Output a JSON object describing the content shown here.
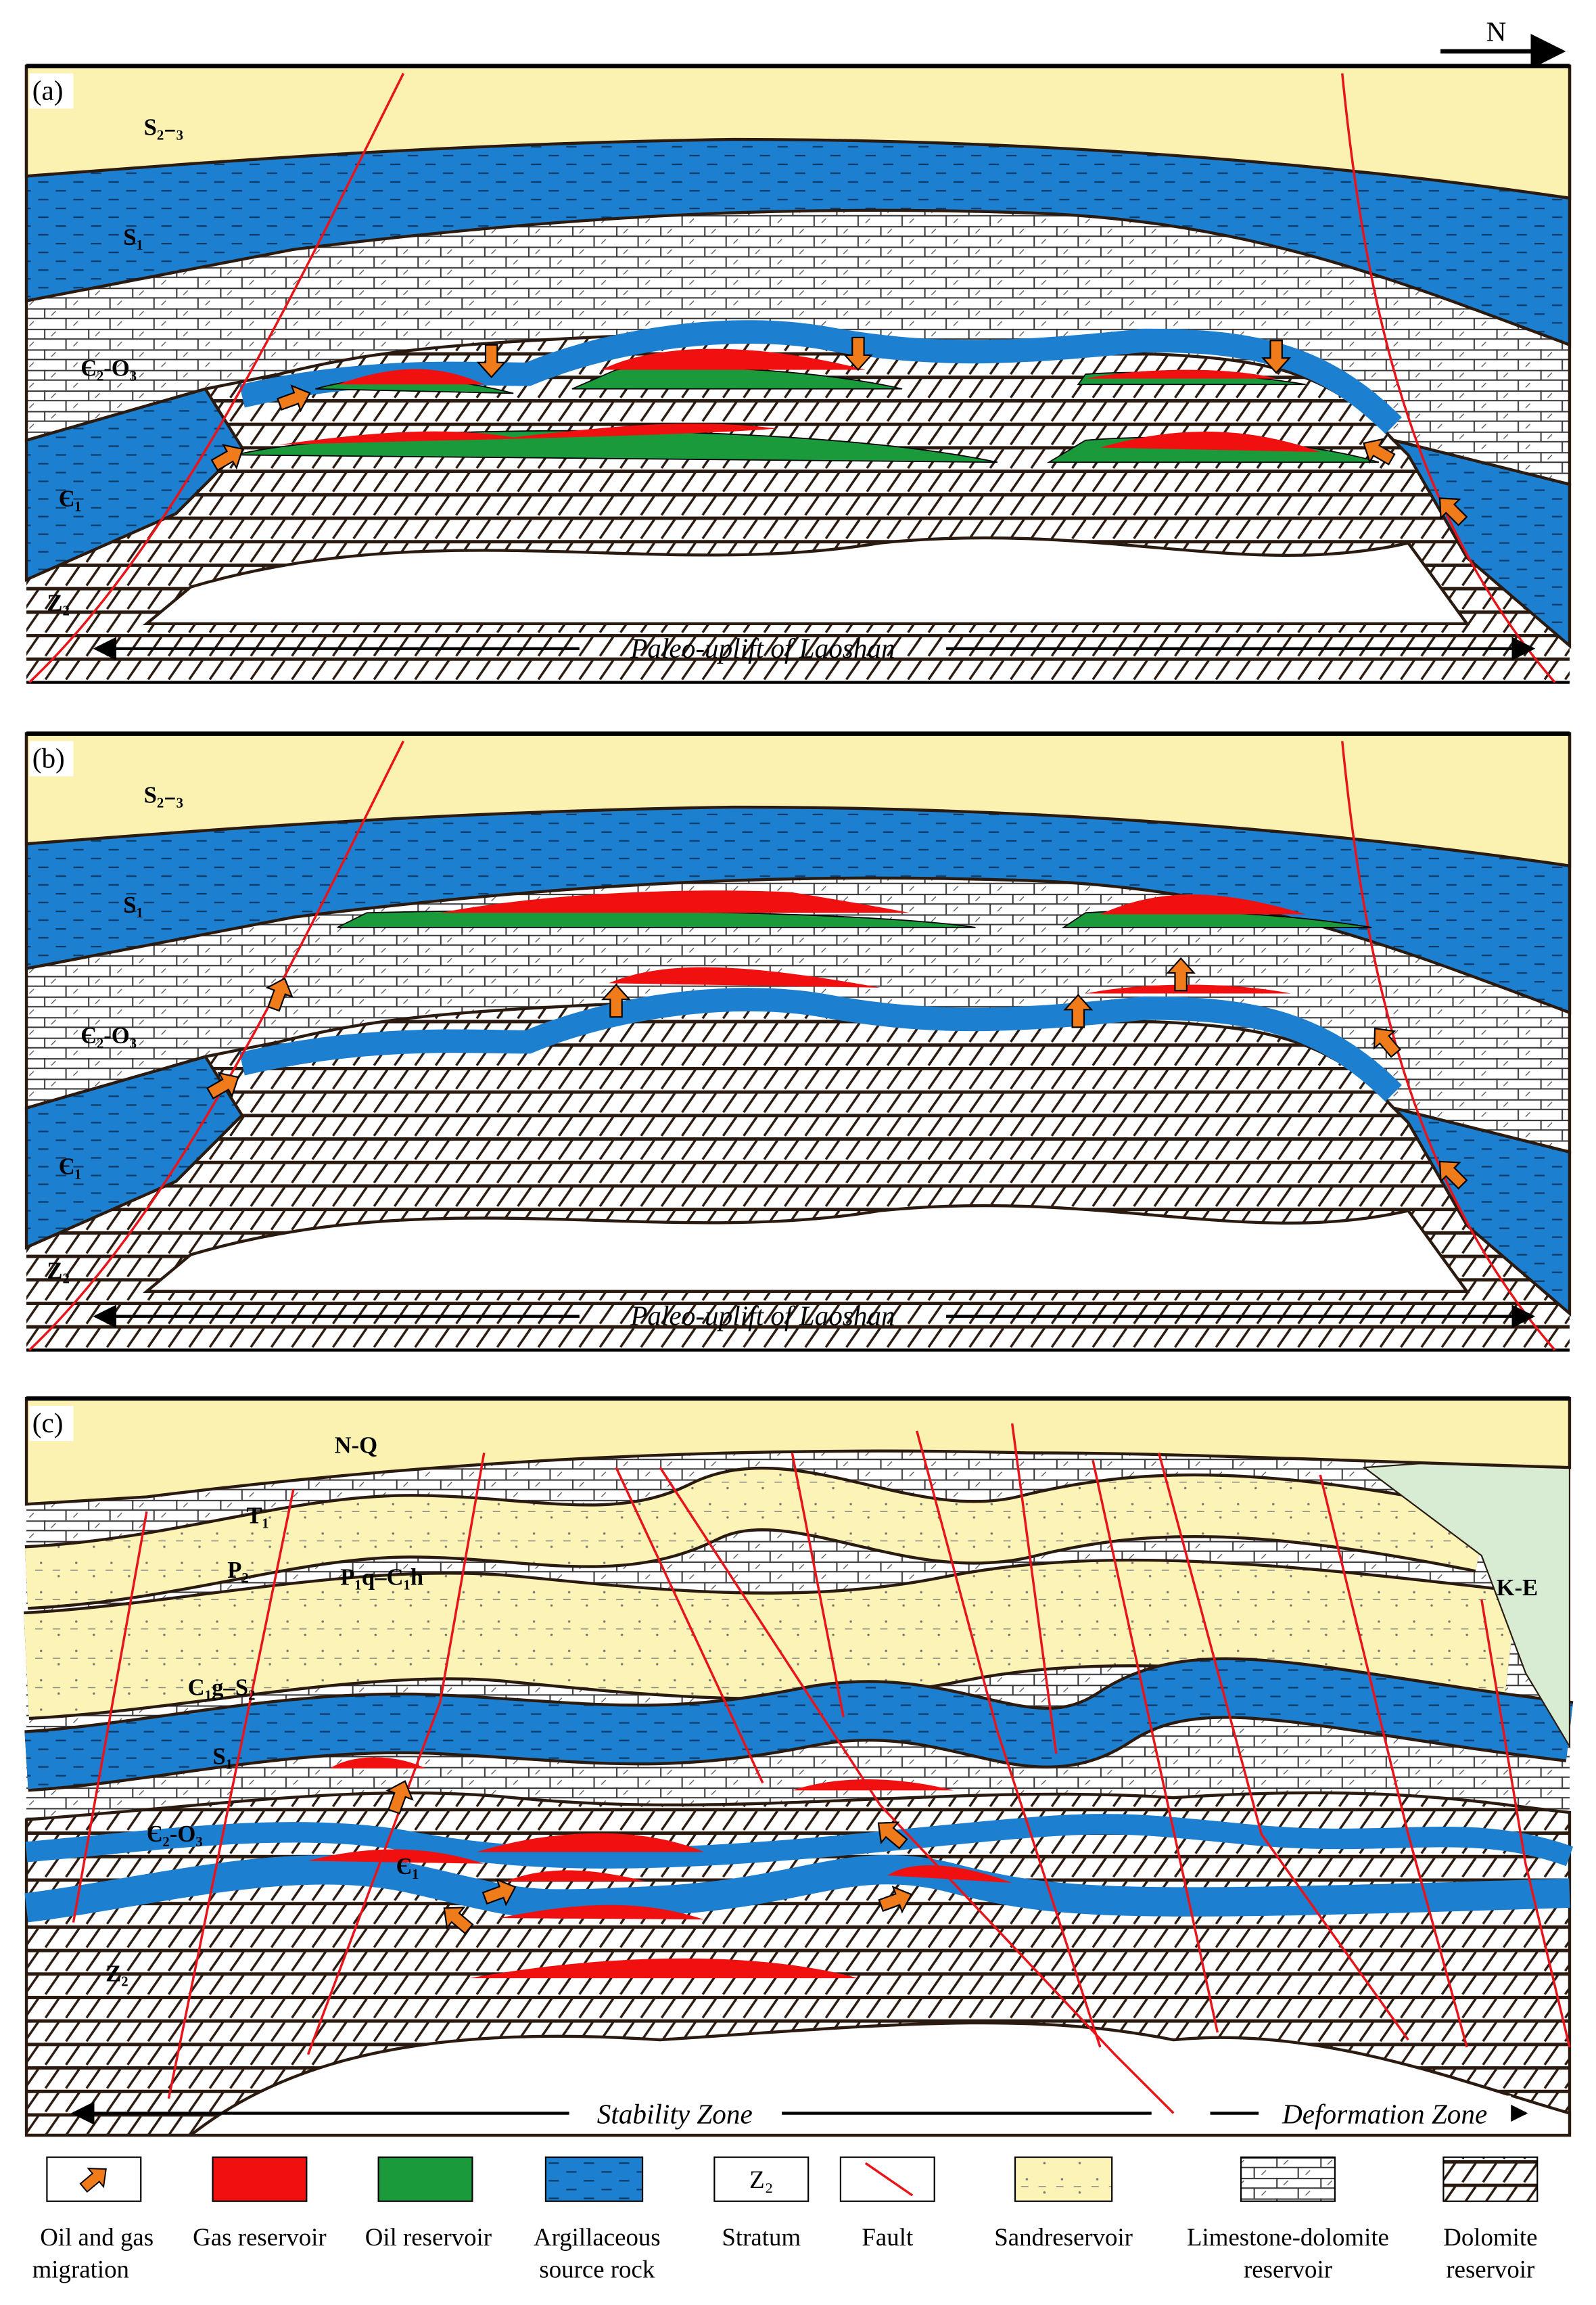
{
  "compass": "N",
  "panels": [
    {
      "label": "(a)",
      "strata": [
        "S₂₋₃",
        "S₁",
        "Є₂-O₃",
        "Є₁",
        "Z₂"
      ],
      "zones": [
        "Paleo-uplift of Laoshan"
      ]
    },
    {
      "label": "(b)",
      "strata": [
        "S₂₋₃",
        "S₁",
        "Є₂-O₃",
        "Є₁",
        "Z₂"
      ],
      "zones": [
        "Paleo-uplift of Laoshan"
      ]
    },
    {
      "label": "(c)",
      "strata": [
        "N-Q",
        "T₁",
        "P₂",
        "P₁q–C₁h",
        "C₁g–S₂",
        "S₁",
        "Є₂-O₃",
        "Є₁",
        "Z₂",
        "K-E"
      ],
      "zones": [
        "Stability Zone",
        "Deformation Zone"
      ]
    }
  ],
  "legend": {
    "items": [
      {
        "label_lines": [
          "Oil and gas",
          "migration"
        ]
      },
      {
        "label_lines": [
          "Gas reservoir"
        ]
      },
      {
        "label_lines": [
          "Oil reservoir"
        ]
      },
      {
        "label_lines": [
          "Argillaceous",
          "source rock"
        ]
      },
      {
        "symbol": "Z₂",
        "label_lines": [
          "Stratum"
        ]
      },
      {
        "label_lines": [
          "Fault"
        ]
      },
      {
        "label_lines": [
          "Sandreservoir"
        ]
      },
      {
        "label_lines": [
          "Limestone-dolomite",
          "reservoir"
        ]
      },
      {
        "label_lines": [
          "Dolomite",
          "reservoir"
        ]
      }
    ]
  }
}
